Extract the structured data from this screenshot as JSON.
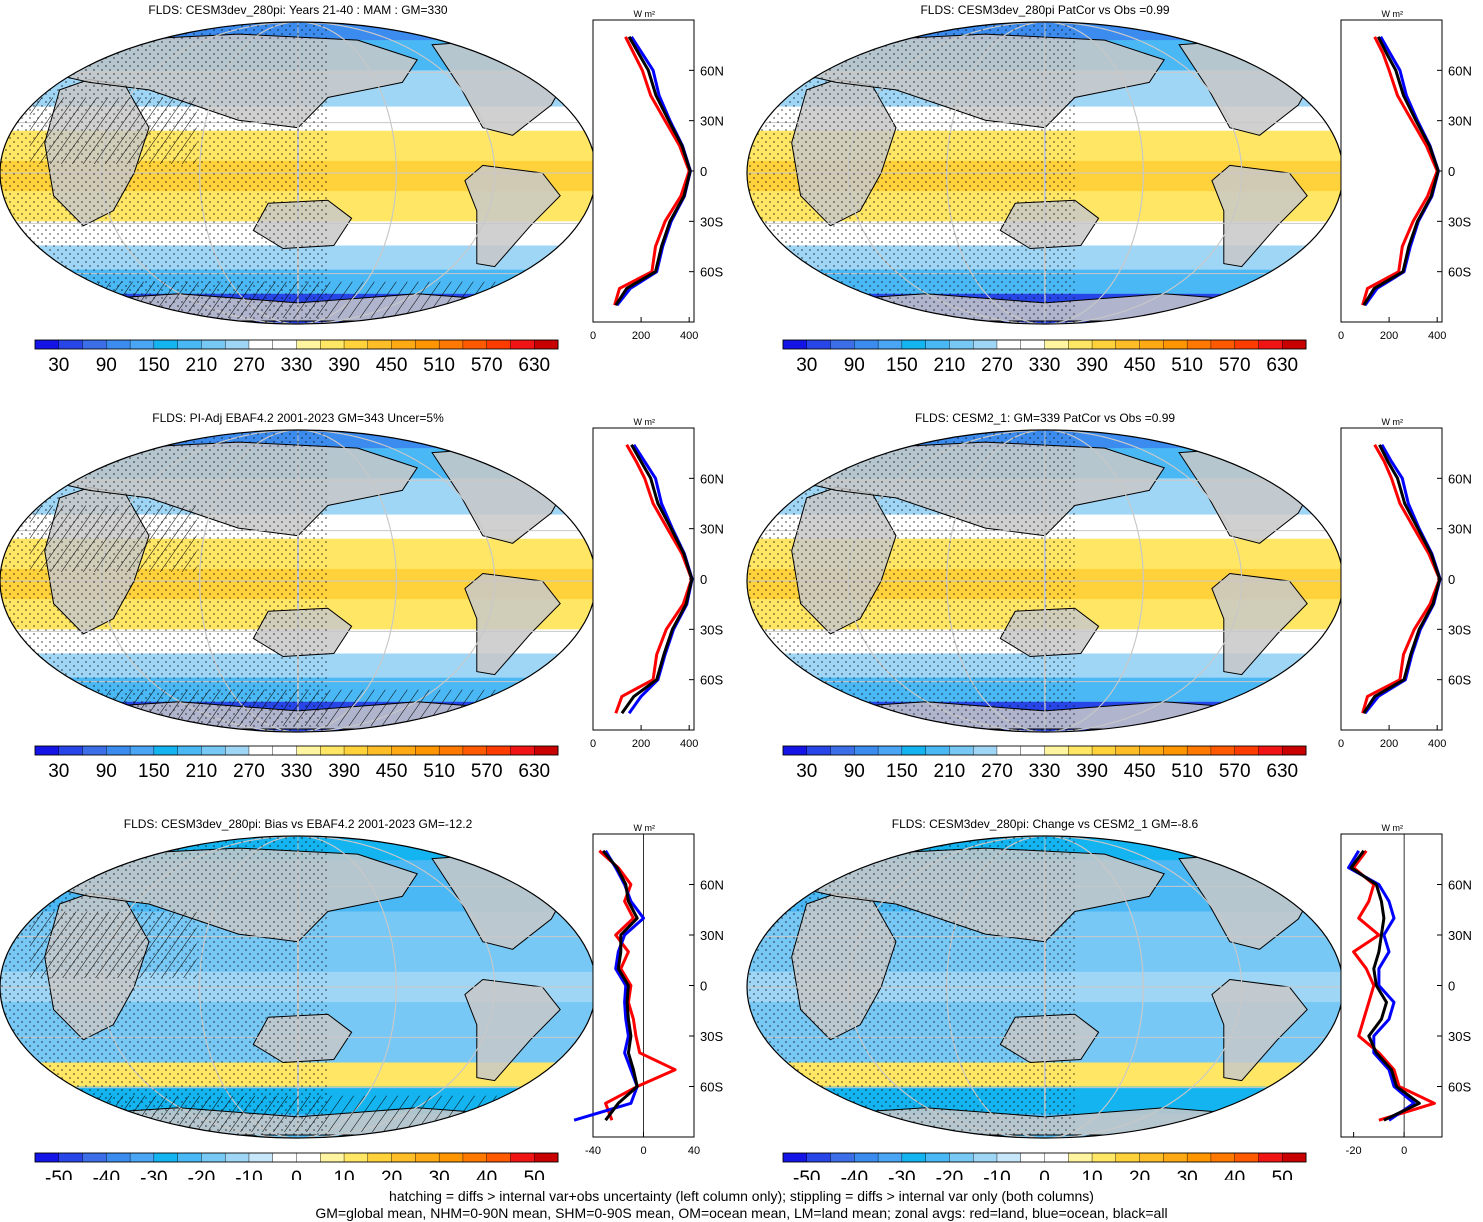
{
  "chart_data": [
    {
      "type": "heatmap",
      "panel": 1,
      "title": "FLDS: CESM3dev_280pi: Years 21-40 : MAM : GM=330",
      "colorbar_ticks": [
        "30",
        "90",
        "150",
        "210",
        "270",
        "330",
        "390",
        "450",
        "510",
        "570",
        "630"
      ],
      "colorbar_scale": "absolute",
      "zonal_profile": {
        "type": "line",
        "unit_label": "W m²",
        "xlim": [
          0,
          420
        ],
        "x_ticks": [
          "0",
          "200",
          "400"
        ],
        "y_ticks": [
          "60N",
          "30N",
          "0",
          "30S",
          "60S"
        ],
        "series": [
          {
            "color": "#ff0000",
            "lat": [
              80,
              70,
              60,
              45,
              30,
              15,
              0,
              -15,
              -30,
              -45,
              -60,
              -70,
              -80
            ],
            "values": [
              135,
              170,
              205,
              240,
              300,
              360,
              400,
              365,
              300,
              260,
              245,
              110,
              90
            ]
          },
          {
            "color": "#0000ff",
            "lat": [
              80,
              70,
              60,
              45,
              30,
              15,
              0,
              -15,
              -30,
              -45,
              -60,
              -70,
              -80
            ],
            "values": [
              160,
              205,
              250,
              275,
              320,
              372,
              405,
              380,
              325,
              290,
              265,
              155,
              100
            ]
          },
          {
            "color": "#000000",
            "lat": [
              80,
              70,
              60,
              45,
              30,
              15,
              0,
              -15,
              -30,
              -45,
              -60,
              -70,
              -80
            ],
            "values": [
              150,
              190,
              230,
              262,
              315,
              370,
              404,
              378,
              320,
              285,
              260,
              140,
              95
            ]
          }
        ]
      }
    },
    {
      "type": "heatmap",
      "panel": 2,
      "title": "FLDS: CESM3dev_280pi PatCor vs Obs =0.99",
      "colorbar_ticks": [
        "30",
        "90",
        "150",
        "210",
        "270",
        "330",
        "390",
        "450",
        "510",
        "570",
        "630"
      ],
      "colorbar_scale": "absolute",
      "zonal_profile": {
        "type": "line",
        "unit_label": "W m²",
        "xlim": [
          0,
          420
        ],
        "x_ticks": [
          "0",
          "200",
          "400"
        ],
        "y_ticks": [
          "60N",
          "30N",
          "0",
          "30S",
          "60S"
        ],
        "series": [
          {
            "color": "#ff0000",
            "lat": [
              80,
              70,
              60,
              45,
              30,
              15,
              0,
              -15,
              -30,
              -45,
              -60,
              -70,
              -80
            ],
            "values": [
              140,
              175,
              200,
              235,
              295,
              355,
              400,
              360,
              300,
              255,
              240,
              110,
              90
            ]
          },
          {
            "color": "#0000ff",
            "lat": [
              80,
              70,
              60,
              45,
              30,
              15,
              0,
              -15,
              -30,
              -45,
              -60,
              -70,
              -80
            ],
            "values": [
              165,
              205,
              245,
              272,
              318,
              370,
              405,
              378,
              322,
              288,
              262,
              150,
              100
            ]
          },
          {
            "color": "#000000",
            "lat": [
              80,
              70,
              60,
              45,
              30,
              15,
              0,
              -15,
              -30,
              -45,
              -60,
              -70,
              -80
            ],
            "values": [
              155,
              190,
              228,
              260,
              312,
              368,
              404,
              375,
              318,
              282,
              258,
              138,
              95
            ]
          }
        ]
      }
    },
    {
      "type": "heatmap",
      "panel": 3,
      "title": "FLDS: PI-Adj EBAF4.2 2001-2023 GM=343 Uncer=5%",
      "colorbar_ticks": [
        "30",
        "90",
        "150",
        "210",
        "270",
        "330",
        "390",
        "450",
        "510",
        "570",
        "630"
      ],
      "colorbar_scale": "absolute",
      "zonal_profile": {
        "type": "line",
        "unit_label": "W m²",
        "xlim": [
          0,
          420
        ],
        "x_ticks": [
          "0",
          "200",
          "400"
        ],
        "y_ticks": [
          "60N",
          "30N",
          "0",
          "30S",
          "60S"
        ],
        "series": [
          {
            "color": "#ff0000",
            "lat": [
              80,
              70,
              60,
              45,
              30,
              15,
              0,
              -15,
              -30,
              -45,
              -60,
              -70,
              -80
            ],
            "values": [
              140,
              180,
              215,
              250,
              310,
              370,
              410,
              375,
              305,
              265,
              250,
              120,
              95
            ]
          },
          {
            "color": "#0000ff",
            "lat": [
              80,
              70,
              60,
              45,
              30,
              15,
              0,
              -15,
              -30,
              -45,
              -60,
              -70,
              -80
            ],
            "values": [
              170,
              215,
              260,
              285,
              330,
              380,
              412,
              390,
              335,
              300,
              270,
              200,
              150
            ]
          },
          {
            "color": "#000000",
            "lat": [
              80,
              70,
              60,
              45,
              30,
              15,
              0,
              -15,
              -30,
              -45,
              -60,
              -70,
              -80
            ],
            "values": [
              160,
              200,
              240,
              270,
              325,
              378,
              411,
              387,
              330,
              295,
              265,
              170,
              120
            ]
          }
        ]
      }
    },
    {
      "type": "heatmap",
      "panel": 4,
      "title": "FLDS: CESM2_1: GM=339 PatCor vs Obs =0.99",
      "colorbar_ticks": [
        "30",
        "90",
        "150",
        "210",
        "270",
        "330",
        "390",
        "450",
        "510",
        "570",
        "630"
      ],
      "colorbar_scale": "absolute",
      "zonal_profile": {
        "type": "line",
        "unit_label": "W m²",
        "xlim": [
          0,
          420
        ],
        "x_ticks": [
          "0",
          "200",
          "400"
        ],
        "y_ticks": [
          "60N",
          "30N",
          "0",
          "30S",
          "60S"
        ],
        "series": [
          {
            "color": "#ff0000",
            "lat": [
              80,
              70,
              60,
              45,
              30,
              15,
              0,
              -15,
              -30,
              -45,
              -60,
              -70,
              -80
            ],
            "values": [
              140,
              180,
              210,
              245,
              305,
              365,
              410,
              370,
              305,
              260,
              245,
              110,
              90
            ]
          },
          {
            "color": "#0000ff",
            "lat": [
              80,
              70,
              60,
              45,
              30,
              15,
              0,
              -15,
              -30,
              -45,
              -60,
              -70,
              -80
            ],
            "values": [
              170,
              210,
              255,
              280,
              325,
              378,
              412,
              385,
              330,
              295,
              268,
              155,
              100
            ]
          },
          {
            "color": "#000000",
            "lat": [
              80,
              70,
              60,
              45,
              30,
              15,
              0,
              -15,
              -30,
              -45,
              -60,
              -70,
              -80
            ],
            "values": [
              160,
              195,
              235,
              265,
              320,
              375,
              411,
              382,
              325,
              290,
              262,
              140,
              95
            ]
          }
        ]
      }
    },
    {
      "type": "heatmap",
      "panel": 5,
      "title": "FLDS: CESM3dev_280pi: Bias vs EBAF4.2 2001-2023 GM=-12.2",
      "colorbar_ticks": [
        "-50",
        "-40",
        "-30",
        "-20",
        "-10",
        "0",
        "10",
        "20",
        "30",
        "40",
        "50"
      ],
      "colorbar_scale": "difference",
      "zonal_profile": {
        "type": "line",
        "unit_label": "W m²",
        "xlim": [
          -40,
          40
        ],
        "x_ticks": [
          "-40",
          "0",
          "40"
        ],
        "y_ticks": [
          "60N",
          "30N",
          "0",
          "30S",
          "60S"
        ],
        "series": [
          {
            "color": "#ff0000",
            "lat": [
              80,
              70,
              60,
              50,
              40,
              30,
              20,
              10,
              0,
              -10,
              -20,
              -30,
              -40,
              -50,
              -60,
              -70,
              -80
            ],
            "values": [
              -35,
              -20,
              -10,
              -15,
              -8,
              -22,
              -12,
              -18,
              -10,
              -12,
              -8,
              -6,
              -3,
              25,
              -5,
              -30,
              -25
            ]
          },
          {
            "color": "#0000ff",
            "lat": [
              80,
              70,
              60,
              50,
              40,
              30,
              20,
              10,
              0,
              -10,
              -20,
              -30,
              -40,
              -50,
              -60,
              -70,
              -80
            ],
            "values": [
              -30,
              -22,
              -15,
              -10,
              0,
              -15,
              -20,
              -22,
              -14,
              -15,
              -14,
              -12,
              -15,
              -10,
              -5,
              -10,
              -55
            ]
          },
          {
            "color": "#000000",
            "lat": [
              80,
              70,
              60,
              50,
              40,
              30,
              20,
              10,
              0,
              -10,
              -20,
              -30,
              -40,
              -50,
              -60,
              -70,
              -80
            ],
            "values": [
              -32,
              -21,
              -14,
              -12,
              -5,
              -18,
              -18,
              -20,
              -12,
              -13,
              -12,
              -10,
              -12,
              -8,
              -5,
              -20,
              -30
            ]
          }
        ]
      }
    },
    {
      "type": "heatmap",
      "panel": 6,
      "title": "FLDS: CESM3dev_280pi: Change vs CESM2_1 GM=-8.6",
      "colorbar_ticks": [
        "-50",
        "-40",
        "-30",
        "-20",
        "-10",
        "0",
        "10",
        "20",
        "30",
        "40",
        "50"
      ],
      "colorbar_scale": "difference",
      "zonal_profile": {
        "type": "line",
        "unit_label": "W m²",
        "xlim": [
          -25,
          15
        ],
        "x_ticks": [
          "-20",
          "0"
        ],
        "y_ticks": [
          "60N",
          "30N",
          "0",
          "30S",
          "60S"
        ],
        "series": [
          {
            "color": "#ff0000",
            "lat": [
              80,
              70,
              60,
              50,
              40,
              30,
              20,
              10,
              0,
              -10,
              -20,
              -30,
              -40,
              -50,
              -60,
              -70,
              -80
            ],
            "values": [
              -15,
              -20,
              -12,
              -14,
              -18,
              -10,
              -20,
              -15,
              -12,
              -14,
              -16,
              -18,
              -10,
              -4,
              -2,
              12,
              -10
            ]
          },
          {
            "color": "#0000ff",
            "lat": [
              80,
              70,
              60,
              50,
              40,
              30,
              20,
              10,
              0,
              -10,
              -20,
              -30,
              -40,
              -50,
              -60,
              -70,
              -80
            ],
            "values": [
              -18,
              -22,
              -10,
              -6,
              -4,
              -8,
              -6,
              -10,
              -10,
              -4,
              -6,
              -12,
              -12,
              -6,
              -4,
              4,
              -6
            ]
          },
          {
            "color": "#000000",
            "lat": [
              80,
              70,
              60,
              50,
              40,
              30,
              20,
              10,
              0,
              -10,
              -20,
              -30,
              -40,
              -50,
              -60,
              -70,
              -80
            ],
            "values": [
              -16,
              -21,
              -11,
              -9,
              -8,
              -9,
              -10,
              -12,
              -11,
              -7,
              -9,
              -14,
              -11,
              -5,
              -3,
              6,
              -8
            ]
          }
        ]
      }
    }
  ],
  "footnotes": [
    "hatching = diffs > internal var+obs uncertainty (left column only); stippling = diffs > internal var only (both columns)",
    "GM=global mean, NHM=0-90N mean, SHM=0-90S mean, OM=ocean mean, LM=land mean; zonal avgs: red=land, blue=ocean, black=all"
  ],
  "colors": {
    "abs_palette": [
      "#1414e6",
      "#2846e8",
      "#3c6ee8",
      "#3c8cf0",
      "#4aa6f5",
      "#14b4f0",
      "#4ab8f5",
      "#78c8f5",
      "#a0d6f5",
      "#ffffff",
      "#ffffff",
      "#fff5a0",
      "#ffe664",
      "#ffd23c",
      "#ffbe28",
      "#ffaa14",
      "#ff9600",
      "#ff7800",
      "#ff5a00",
      "#ff3c00",
      "#f01414",
      "#c80000"
    ],
    "diff_palette": [
      "#1414e6",
      "#2846e8",
      "#3c6ee8",
      "#3c8cf0",
      "#4aa6f5",
      "#14b4f0",
      "#4ab8f5",
      "#78c8f5",
      "#a0d6f5",
      "#c8e6fa",
      "#ffffff",
      "#ffffff",
      "#fff5a0",
      "#ffe664",
      "#ffd23c",
      "#ffbe28",
      "#ffaa14",
      "#ff9600",
      "#ff7800",
      "#ff5a00",
      "#f01414",
      "#c80000"
    ],
    "land_mask": "#c8c8c8"
  }
}
